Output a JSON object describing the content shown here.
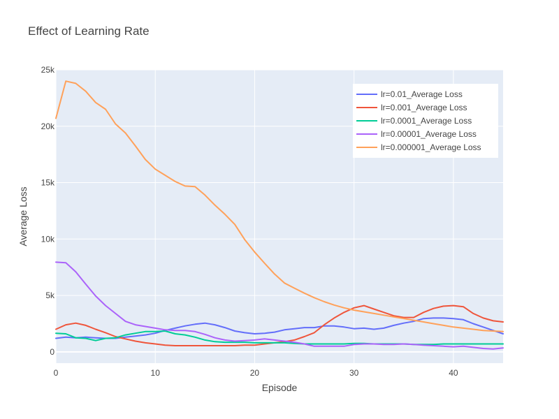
{
  "chart_data": {
    "type": "line",
    "title": "Effect of Learning Rate",
    "xlabel": "Episode",
    "ylabel": "Average Loss",
    "xlim": [
      0,
      45
    ],
    "ylim": [
      -1000,
      25000
    ],
    "x_ticks": [
      0,
      10,
      20,
      30,
      40
    ],
    "x_tick_labels": [
      "0",
      "10",
      "20",
      "30",
      "40"
    ],
    "y_ticks": [
      0,
      5000,
      10000,
      15000,
      20000,
      25000
    ],
    "y_tick_labels": [
      "0",
      "5k",
      "10k",
      "15k",
      "20k",
      "25k"
    ],
    "grid": true,
    "legend_position": "top-right",
    "x": [
      0,
      1,
      2,
      3,
      4,
      5,
      6,
      7,
      8,
      9,
      10,
      11,
      12,
      13,
      14,
      15,
      16,
      17,
      18,
      19,
      20,
      21,
      22,
      23,
      24,
      25,
      26,
      27,
      28,
      29,
      30,
      31,
      32,
      33,
      34,
      35,
      36,
      37,
      38,
      39,
      40,
      41,
      42,
      43,
      44,
      45
    ],
    "series": [
      {
        "name": "lr=0.01_Average Loss",
        "color": "#636efa",
        "values": [
          1200,
          1300,
          1250,
          1300,
          1250,
          1200,
          1200,
          1300,
          1400,
          1500,
          1650,
          1900,
          2100,
          2300,
          2450,
          2550,
          2400,
          2150,
          1850,
          1700,
          1600,
          1650,
          1750,
          1950,
          2050,
          2150,
          2150,
          2300,
          2300,
          2200,
          2050,
          2100,
          2000,
          2100,
          2350,
          2550,
          2700,
          2950,
          3000,
          3000,
          2950,
          2850,
          2500,
          2200,
          1900,
          1600
        ]
      },
      {
        "name": "lr=0.001_Average Loss",
        "color": "#ef553b",
        "values": [
          2000,
          2400,
          2550,
          2350,
          2000,
          1700,
          1350,
          1150,
          950,
          800,
          700,
          600,
          550,
          550,
          550,
          550,
          550,
          550,
          550,
          600,
          600,
          700,
          800,
          900,
          1050,
          1350,
          1700,
          2400,
          3000,
          3500,
          3900,
          4100,
          3800,
          3500,
          3200,
          3050,
          3050,
          3500,
          3850,
          4050,
          4100,
          4000,
          3400,
          3000,
          2750,
          2650
        ]
      },
      {
        "name": "lr=0.0001_Average Loss",
        "color": "#00cc96",
        "values": [
          1650,
          1600,
          1250,
          1200,
          1000,
          1200,
          1250,
          1500,
          1650,
          1800,
          1800,
          1850,
          1600,
          1500,
          1300,
          1050,
          900,
          850,
          850,
          850,
          800,
          800,
          800,
          800,
          750,
          700,
          700,
          700,
          700,
          700,
          750,
          750,
          700,
          700,
          700,
          700,
          650,
          650,
          650,
          700,
          700,
          700,
          700,
          700,
          700,
          700
        ]
      },
      {
        "name": "lr=0.00001_Average Loss",
        "color": "#ab63fa",
        "values": [
          7950,
          7900,
          7100,
          6000,
          4950,
          4100,
          3400,
          2700,
          2400,
          2250,
          2100,
          1950,
          1900,
          1900,
          1800,
          1550,
          1250,
          1050,
          950,
          1000,
          1050,
          1150,
          1050,
          950,
          850,
          700,
          500,
          500,
          500,
          500,
          650,
          700,
          700,
          650,
          650,
          700,
          650,
          600,
          550,
          500,
          450,
          500,
          400,
          300,
          250,
          350
        ]
      },
      {
        "name": "lr=0.000001_Average Loss",
        "color": "#ffa15a",
        "values": [
          20700,
          24000,
          23800,
          23100,
          22100,
          21500,
          20200,
          19400,
          18250,
          17050,
          16200,
          15650,
          15100,
          14700,
          14650,
          13900,
          13000,
          12200,
          11300,
          9950,
          8850,
          7850,
          6900,
          6100,
          5650,
          5200,
          4800,
          4450,
          4150,
          3900,
          3700,
          3550,
          3400,
          3250,
          3100,
          2950,
          2800,
          2650,
          2500,
          2350,
          2200,
          2100,
          2000,
          1900,
          1850,
          1800
        ]
      }
    ]
  }
}
